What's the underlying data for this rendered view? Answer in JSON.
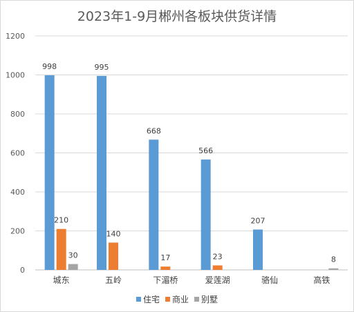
{
  "chart_data": {
    "type": "bar",
    "title": "2023年1-9月郴州各板块供货详情",
    "categories": [
      "城东",
      "五岭",
      "下湄桥",
      "爱莲湖",
      "骆仙",
      "高铁"
    ],
    "series": [
      {
        "name": "住宅",
        "color": "#5b9bd5",
        "values": [
          998,
          995,
          668,
          566,
          207,
          null
        ]
      },
      {
        "name": "商业",
        "color": "#ed7d31",
        "values": [
          210,
          140,
          17,
          23,
          null,
          null
        ]
      },
      {
        "name": "别墅",
        "color": "#a5a5a5",
        "values": [
          30,
          null,
          null,
          null,
          null,
          8
        ]
      }
    ],
    "y_ticks": [
      0,
      200,
      400,
      600,
      800,
      1000,
      1200
    ],
    "ylim": [
      0,
      1200
    ],
    "grid": true,
    "legend_position": "bottom"
  }
}
